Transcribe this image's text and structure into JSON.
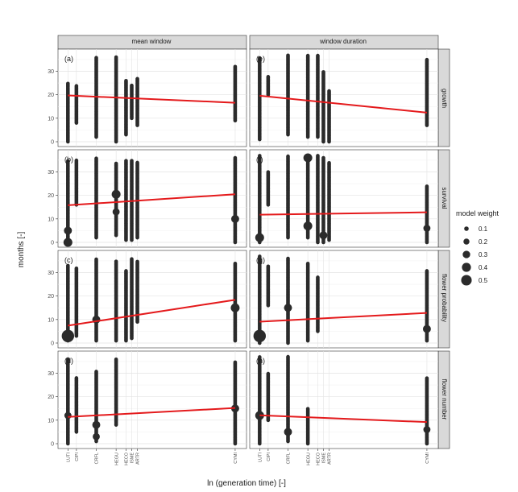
{
  "chart_data": {
    "type": "scatter",
    "xlabel": "ln (generation time) [-]",
    "ylabel": "months [-]",
    "ylim": [
      0,
      36
    ],
    "y_ticks": [
      0,
      10,
      20,
      30
    ],
    "grid": true,
    "facet_cols": [
      "mean window",
      "window duration"
    ],
    "facet_rows": [
      "growth",
      "survival",
      "flower probability",
      "flower number"
    ],
    "panel_tags": [
      [
        "(a)",
        "(e)"
      ],
      [
        "(b)",
        "(f)"
      ],
      [
        "(c)",
        "(g)"
      ],
      [
        "(d)",
        "(h)"
      ]
    ],
    "species": [
      {
        "label": "LUTI",
        "x": 0.0
      },
      {
        "label": "CIPI",
        "x": 0.03
      },
      {
        "label": "CRFL",
        "x": 0.1
      },
      {
        "label": "HEGU",
        "x": 0.17
      },
      {
        "label": "HECO",
        "x": 0.205
      },
      {
        "label": "ISME",
        "x": 0.225
      },
      {
        "label": "ARTR",
        "x": 0.245
      },
      {
        "label": "CYMI",
        "x": 0.59
      }
    ],
    "legend": {
      "title": "model weight",
      "position": "right",
      "entries": [
        {
          "label": "0.1",
          "value": 0.1
        },
        {
          "label": "0.2",
          "value": 0.2
        },
        {
          "label": "0.3",
          "value": 0.3
        },
        {
          "label": "0.4",
          "value": 0.4
        },
        {
          "label": "0.5",
          "value": 0.5
        }
      ]
    },
    "regression_color": "#e41a1c",
    "point_color": "#2b2b2b",
    "panels": [
      {
        "row": 0,
        "col": 0,
        "fit": [
          19.7,
          16.6
        ],
        "ranges": [
          [
            0,
            25
          ],
          [
            8,
            24
          ],
          [
            2,
            36
          ],
          [
            0,
            36
          ],
          [
            3,
            26
          ],
          [
            10,
            24
          ],
          [
            7,
            27
          ],
          [
            9,
            32
          ]
        ],
        "big": []
      },
      {
        "row": 0,
        "col": 1,
        "fit": [
          19.6,
          12.4
        ],
        "ranges": [
          [
            1,
            36
          ],
          [
            20,
            28
          ],
          [
            3,
            37
          ],
          [
            2,
            37
          ],
          [
            2,
            37
          ],
          [
            0,
            30
          ],
          [
            0,
            22
          ],
          [
            7,
            35
          ]
        ],
        "big": []
      },
      {
        "row": 1,
        "col": 0,
        "fit": [
          15.8,
          20.5
        ],
        "ranges": [
          [
            0,
            35
          ],
          [
            16,
            35
          ],
          [
            2,
            36
          ],
          [
            3,
            34
          ],
          [
            1,
            35
          ],
          [
            1,
            35
          ],
          [
            2,
            34
          ],
          [
            0,
            36
          ]
        ],
        "big": [
          [
            0,
            0.3
          ],
          [
            0,
            5,
            0.25
          ],
          [
            3,
            20.5,
            0.3
          ],
          [
            3,
            13,
            0.2
          ],
          [
            7,
            10,
            0.25
          ]
        ]
      },
      {
        "row": 1,
        "col": 1,
        "fit": [
          11.8,
          12.8
        ],
        "ranges": [
          [
            0,
            37
          ],
          [
            16,
            30
          ],
          [
            2,
            37
          ],
          [
            2,
            37
          ],
          [
            0,
            37
          ],
          [
            0,
            36
          ],
          [
            1,
            34
          ],
          [
            0,
            24
          ]
        ],
        "big": [
          [
            0,
            2,
            0.3
          ],
          [
            3,
            36,
            0.3
          ],
          [
            3,
            7,
            0.3
          ],
          [
            5,
            3,
            0.25
          ],
          [
            7,
            6,
            0.2
          ]
        ]
      },
      {
        "row": 2,
        "col": 0,
        "fit": [
          7.4,
          18.4
        ],
        "ranges": [
          [
            1,
            33
          ],
          [
            3,
            32
          ],
          [
            1,
            36
          ],
          [
            1,
            35
          ],
          [
            1,
            31
          ],
          [
            2,
            36
          ],
          [
            9,
            35
          ],
          [
            1,
            34
          ]
        ],
        "big": [
          [
            0,
            3,
            0.5
          ],
          [
            2,
            10,
            0.25
          ],
          [
            7,
            15,
            0.3
          ]
        ]
      },
      {
        "row": 2,
        "col": 1,
        "fit": [
          9.1,
          12.8
        ],
        "ranges": [
          [
            0,
            37
          ],
          [
            16,
            33
          ],
          [
            0,
            36
          ],
          [
            1,
            34
          ],
          [
            5,
            28
          ],
          [
            0,
            0
          ],
          [
            0,
            0
          ],
          [
            1,
            31
          ]
        ],
        "big": [
          [
            0,
            3,
            0.5
          ],
          [
            2,
            15,
            0.25
          ],
          [
            7,
            6,
            0.25
          ]
        ]
      },
      {
        "row": 3,
        "col": 0,
        "fit": [
          11.4,
          15.2
        ],
        "ranges": [
          [
            0,
            36
          ],
          [
            5,
            28
          ],
          [
            1,
            31
          ],
          [
            8,
            36
          ],
          [
            0,
            0
          ],
          [
            0,
            0
          ],
          [
            0,
            0
          ],
          [
            0,
            35
          ]
        ],
        "big": [
          [
            0,
            12,
            0.2
          ],
          [
            2,
            8,
            0.25
          ],
          [
            2,
            3,
            0.2
          ],
          [
            7,
            15,
            0.25
          ]
        ]
      },
      {
        "row": 3,
        "col": 1,
        "fit": [
          12.1,
          9.2
        ],
        "ranges": [
          [
            0,
            37
          ],
          [
            10,
            30
          ],
          [
            1,
            37
          ],
          [
            0,
            15
          ],
          [
            0,
            0
          ],
          [
            0,
            0
          ],
          [
            0,
            0
          ],
          [
            0,
            28
          ]
        ],
        "big": [
          [
            0,
            12,
            0.3
          ],
          [
            2,
            5,
            0.25
          ],
          [
            7,
            6,
            0.2
          ]
        ]
      }
    ]
  }
}
